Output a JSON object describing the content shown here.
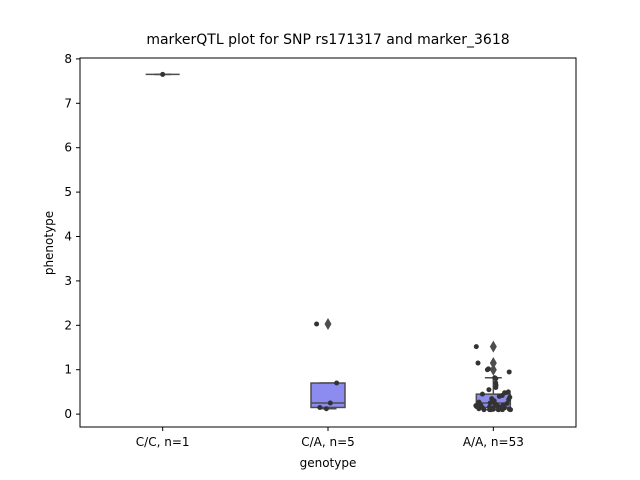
{
  "chart_data": {
    "type": "box",
    "title": "markerQTL plot for SNP rs171317 and marker_3618",
    "xlabel": "genotype",
    "ylabel": "phenotype",
    "categories": [
      "C/C, n=1",
      "C/A, n=5",
      "A/A, n=53"
    ],
    "color": "#8c8cf0",
    "edge_color": "#4d4d4d",
    "point_color": "#333333",
    "ylim": [
      -0.29,
      8.02
    ],
    "yticks": [
      0,
      1,
      2,
      3,
      4,
      5,
      6,
      7,
      8
    ],
    "boxes": [
      {
        "whislo": 7.65,
        "q1": 7.65,
        "med": 7.65,
        "q3": 7.65,
        "whishi": 7.65,
        "fliers": []
      },
      {
        "whislo": 0.12,
        "q1": 0.15,
        "med": 0.25,
        "q3": 0.7,
        "whishi": 0.7,
        "fliers": [
          2.03
        ]
      },
      {
        "whislo": 0.1,
        "q1": 0.15,
        "med": 0.25,
        "q3": 0.45,
        "whishi": 0.82,
        "fliers": [
          1.0,
          1.15,
          1.52
        ]
      }
    ],
    "points": [
      [
        7.65
      ],
      [
        2.03,
        0.7,
        0.25,
        0.12,
        0.15
      ],
      [
        1.52,
        1.15,
        1.02,
        1.0,
        0.95,
        0.82,
        0.8,
        0.7,
        0.65,
        0.6,
        0.55,
        0.5,
        0.48,
        0.45,
        0.42,
        0.4,
        0.38,
        0.35,
        0.33,
        0.3,
        0.3,
        0.28,
        0.27,
        0.25,
        0.25,
        0.24,
        0.22,
        0.21,
        0.2,
        0.2,
        0.19,
        0.18,
        0.17,
        0.16,
        0.15,
        0.15,
        0.14,
        0.14,
        0.13,
        0.13,
        0.12,
        0.12,
        0.12,
        0.11,
        0.11,
        0.11,
        0.1,
        0.1,
        0.1,
        0.1,
        0.1,
        0.1,
        0.1
      ]
    ]
  }
}
